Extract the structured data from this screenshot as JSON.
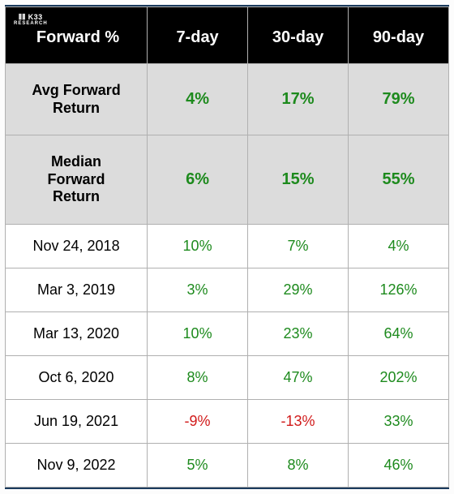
{
  "logo": {
    "line1": "⫴⫴ K33",
    "line2": "RESEARCH"
  },
  "header": [
    "Forward %",
    "7-day",
    "30-day",
    "90-day"
  ],
  "summary": [
    {
      "label": "Avg Forward Return",
      "values": [
        "4%",
        "17%",
        "79%"
      ],
      "signs": [
        "pos",
        "pos",
        "pos"
      ]
    },
    {
      "label": "Median Forward Return",
      "values": [
        "6%",
        "15%",
        "55%"
      ],
      "signs": [
        "pos",
        "pos",
        "pos"
      ]
    }
  ],
  "rows": [
    {
      "date": "Nov 24, 2018",
      "values": [
        "10%",
        "7%",
        "4%"
      ],
      "signs": [
        "pos",
        "pos",
        "pos"
      ]
    },
    {
      "date": "Mar 3, 2019",
      "values": [
        "3%",
        "29%",
        "126%"
      ],
      "signs": [
        "pos",
        "pos",
        "pos"
      ]
    },
    {
      "date": "Mar 13, 2020",
      "values": [
        "10%",
        "23%",
        "64%"
      ],
      "signs": [
        "pos",
        "pos",
        "pos"
      ]
    },
    {
      "date": "Oct 6, 2020",
      "values": [
        "8%",
        "47%",
        "202%"
      ],
      "signs": [
        "pos",
        "pos",
        "pos"
      ]
    },
    {
      "date": "Jun 19, 2021",
      "values": [
        "-9%",
        "-13%",
        "33%"
      ],
      "signs": [
        "neg",
        "neg",
        "pos"
      ]
    },
    {
      "date": "Nov 9, 2022",
      "values": [
        "5%",
        "8%",
        "46%"
      ],
      "signs": [
        "pos",
        "pos",
        "pos"
      ]
    }
  ],
  "style": {
    "pos_color": "#1d8a1d",
    "neg_color": "#d11a1a",
    "header_bg": "#000000",
    "summary_bg": "#dcdcdc",
    "border_color": "#b0b0b0",
    "frame_color": "#1a3a5c"
  }
}
